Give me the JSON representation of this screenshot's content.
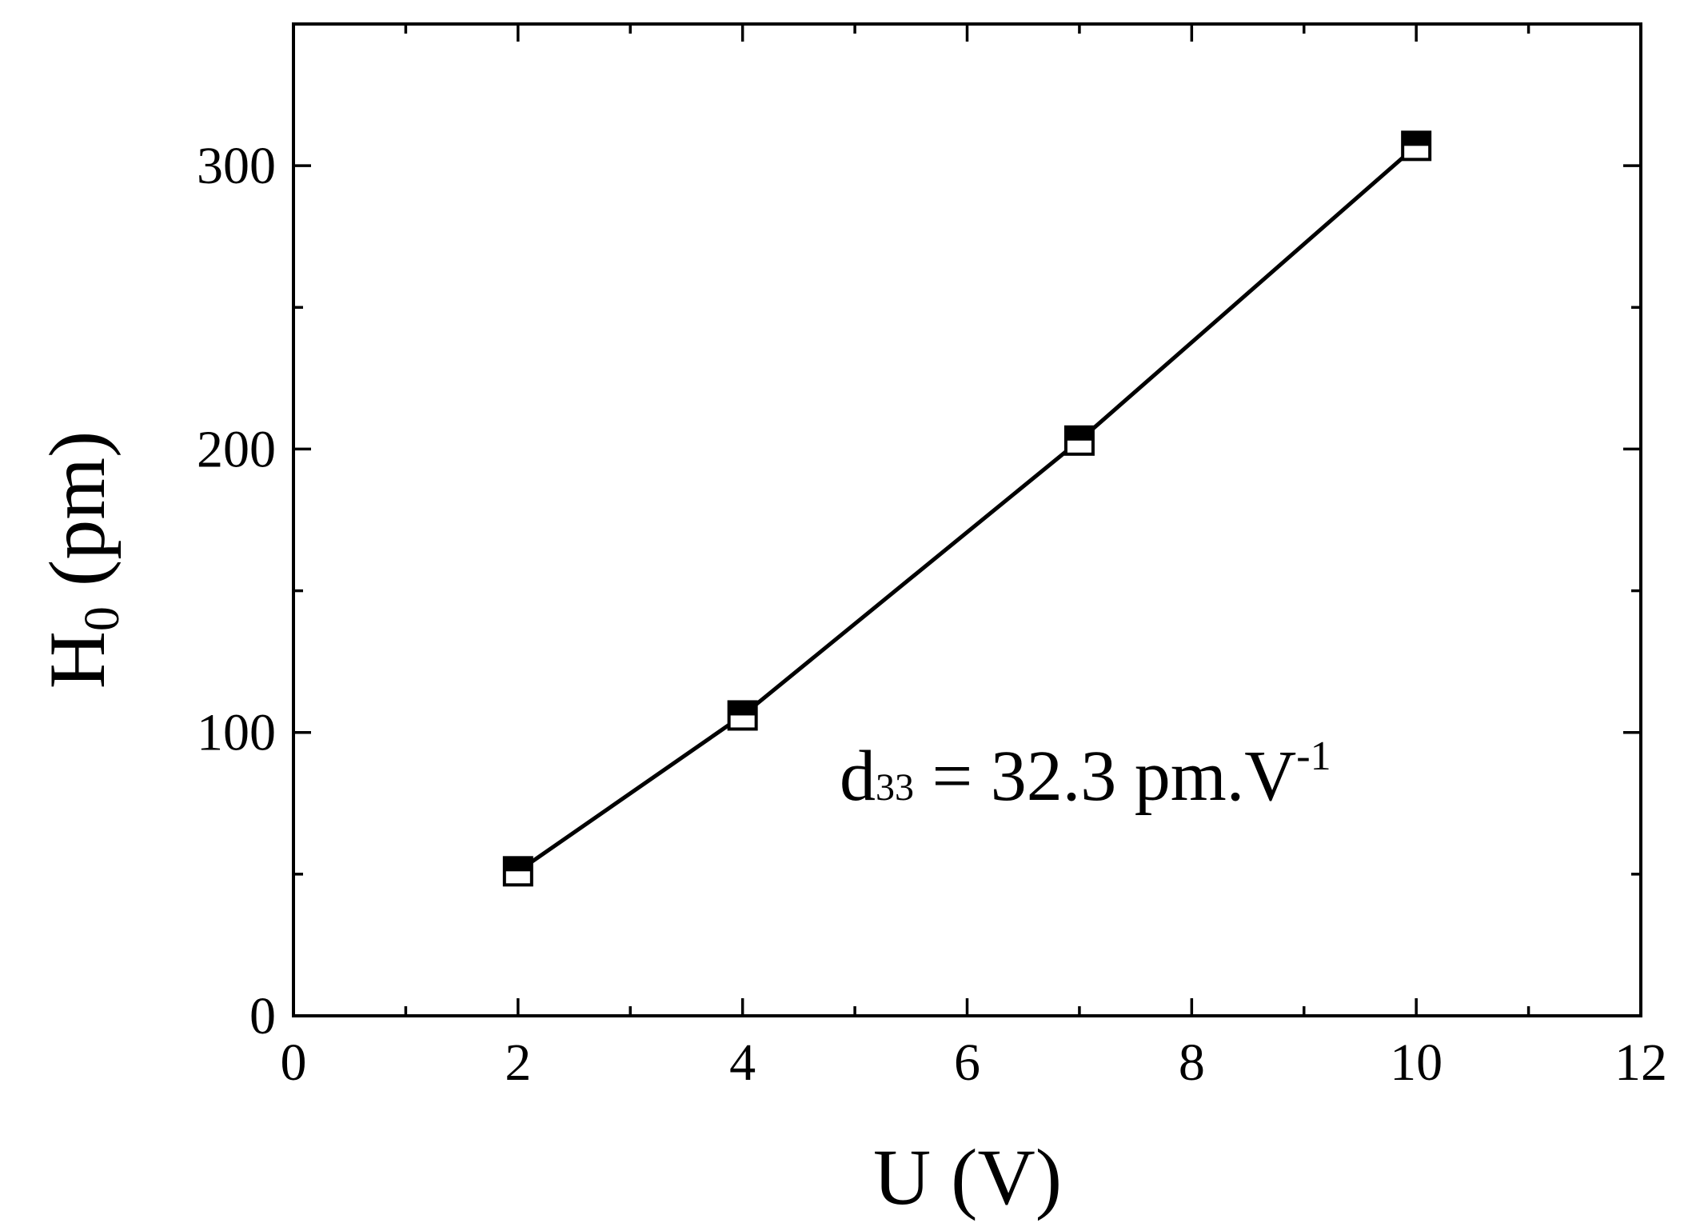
{
  "chart_data": {
    "type": "line",
    "title": "",
    "xlabel": "U (V)",
    "ylabel": {
      "main": "H",
      "subscript": "0",
      "unit": " (pm)"
    },
    "xlim": [
      0,
      12
    ],
    "ylim": [
      0,
      350
    ],
    "x_major_ticks": [
      0,
      2,
      4,
      6,
      8,
      10,
      12
    ],
    "x_tick_labels": [
      "0",
      "2",
      "4",
      "6",
      "8",
      "10",
      "12"
    ],
    "x_minor_ticks": [
      1,
      3,
      5,
      7,
      9,
      11
    ],
    "y_major_ticks": [
      0,
      100,
      200,
      300
    ],
    "y_tick_labels": [
      "0",
      "100",
      "200",
      "300"
    ],
    "y_minor_ticks": [
      50,
      150,
      250
    ],
    "grid": false,
    "marker": "half-filled-square",
    "series": [
      {
        "x": [
          2,
          4,
          7,
          10
        ],
        "y": [
          51,
          106,
          203,
          307
        ]
      }
    ],
    "annotation": {
      "prefix": "d",
      "subscript": "33",
      "middle": " = 32.3 pm.V",
      "superscript": "-1"
    },
    "colors": {
      "line": "#000000",
      "marker_fill": "#000000",
      "marker_face": "#ffffff",
      "axes": "#000000"
    }
  }
}
